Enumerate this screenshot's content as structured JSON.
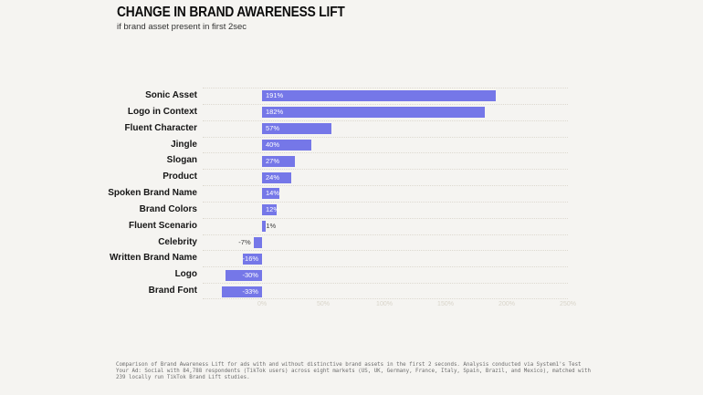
{
  "page": {
    "title": "CHANGE IN BRAND AWARENESS LIFT",
    "subtitle": "if brand asset present in first 2sec",
    "footnote": "Comparison of Brand Awareness Lift for ads with and without distinctive brand assets in the first 2 seconds. Analysis conducted via System1's Test Your Ad: Social with 84,788 respondents (TikTok users) across eight markets (US, UK, Germany, France, Italy, Spain, Brazil, and Mexico), matched with 239 locally run TikTok Brand Lift studies."
  },
  "chart_data": {
    "type": "bar",
    "orientation": "horizontal",
    "title": "CHANGE IN BRAND AWARENESS LIFT",
    "subtitle": "if brand asset present in first 2sec",
    "categories": [
      "Sonic Asset",
      "Logo in Context",
      "Fluent Character",
      "Jingle",
      "Slogan",
      "Product",
      "Spoken Brand Name",
      "Brand Colors",
      "Fluent Scenario",
      "Celebrity",
      "Written Brand Name",
      "Logo",
      "Brand Font"
    ],
    "values": [
      191,
      182,
      57,
      40,
      27,
      24,
      14,
      12,
      1,
      -7,
      -16,
      -30,
      -33
    ],
    "value_labels": [
      "191%",
      "182%",
      "57%",
      "40%",
      "27%",
      "24%",
      "14%",
      "12%",
      "1%",
      "-7%",
      "-16%",
      "-30%",
      "-33%"
    ],
    "xlabel": "",
    "ylabel": "",
    "xlim": [
      -48,
      250
    ],
    "x_tick_values": [
      0,
      50,
      100,
      150,
      200,
      250
    ],
    "x_tick_labels": [
      "0%",
      "50%",
      "100%",
      "150%",
      "200%",
      "250%"
    ],
    "grid": "horizontal-dotted-row-separators",
    "legend": "none",
    "bar_color": "#7577e8",
    "bar_label_color_inside": "#ffffff",
    "bar_label_color_outside": "#3c3c3c",
    "background_color": "#f5f4f1"
  }
}
